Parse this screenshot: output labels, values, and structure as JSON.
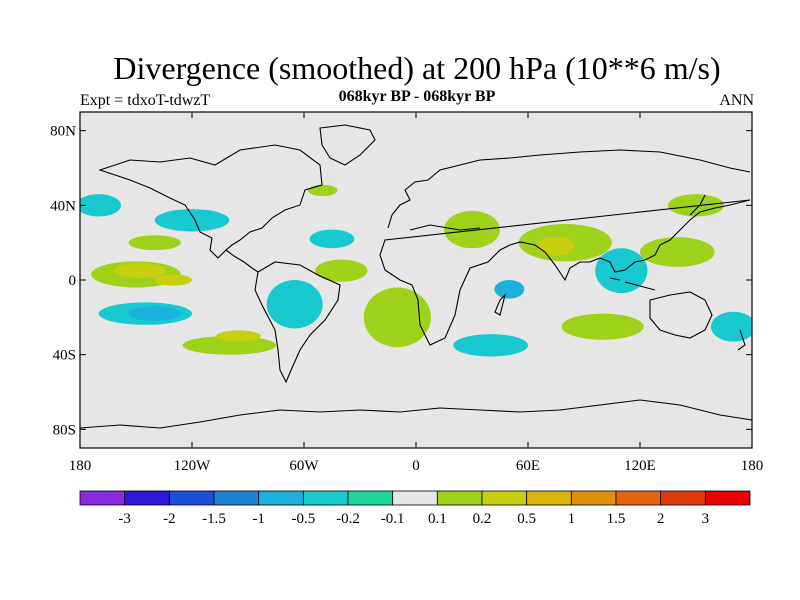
{
  "title": "Divergence (smoothed) at 200 hPa (10**6 m/s)",
  "left_string": "Expt = tdxoT-tdwzT",
  "center_string": "068kyr BP - 068kyr BP",
  "right_string": "ANN",
  "map": {
    "background_color": "#e6e6e6",
    "coastline_color": "#000000",
    "lat_ticks": [
      {
        "label": "80N",
        "lat": 80
      },
      {
        "label": "40N",
        "lat": 40
      },
      {
        "label": "0",
        "lat": 0
      },
      {
        "label": "40S",
        "lat": -40
      },
      {
        "label": "80S",
        "lat": -80
      }
    ],
    "lon_ticks": [
      {
        "label": "180",
        "lon": -180
      },
      {
        "label": "120W",
        "lon": -120
      },
      {
        "label": "60W",
        "lon": -60
      },
      {
        "label": "0",
        "lon": 0
      },
      {
        "label": "60E",
        "lon": 60
      },
      {
        "label": "120E",
        "lon": 120
      },
      {
        "label": "180",
        "lon": 180
      }
    ]
  },
  "colorbar": {
    "labels": [
      "-3",
      "-2",
      "-1.5",
      "-1",
      "-0.5",
      "-0.2",
      "-0.1",
      "0.1",
      "0.2",
      "0.5",
      "1",
      "1.5",
      "2",
      "3"
    ],
    "colors": [
      "#8a2be2",
      "#3018d8",
      "#1c4fd8",
      "#1f84d8",
      "#1ab1dc",
      "#18c9cf",
      "#20d49c",
      "#e6e6e6",
      "#9fd21a",
      "#c7cf10",
      "#dcb20d",
      "#df8f0c",
      "#e0660c",
      "#e03a0c",
      "#e80000"
    ]
  },
  "regions": [
    {
      "level": "0.2",
      "lon": -150,
      "lat": 3,
      "rlon": 24,
      "rlat": 7
    },
    {
      "level": "0.5",
      "lon": -148,
      "lat": 5,
      "rlon": 14,
      "rlat": 4
    },
    {
      "level": "0.5",
      "lon": -130,
      "lat": 0,
      "rlon": 10,
      "rlat": 3
    },
    {
      "level": "-0.2",
      "lon": -145,
      "lat": -18,
      "rlon": 25,
      "rlat": 6
    },
    {
      "level": "-0.5",
      "lon": -140,
      "lat": -18,
      "rlon": 14,
      "rlat": 4
    },
    {
      "level": "-0.2",
      "lon": -170,
      "lat": 40,
      "rlon": 12,
      "rlat": 6
    },
    {
      "level": "-0.2",
      "lon": -120,
      "lat": 32,
      "rlon": 20,
      "rlat": 6
    },
    {
      "level": "0.2",
      "lon": -140,
      "lat": 20,
      "rlon": 14,
      "rlat": 4
    },
    {
      "level": "-0.2",
      "lon": -65,
      "lat": -13,
      "rlon": 15,
      "rlat": 13
    },
    {
      "level": "0.2",
      "lon": -40,
      "lat": 5,
      "rlon": 14,
      "rlat": 6
    },
    {
      "level": "-0.2",
      "lon": -45,
      "lat": 22,
      "rlon": 12,
      "rlat": 5
    },
    {
      "level": "0.2",
      "lon": -50,
      "lat": 48,
      "rlon": 8,
      "rlat": 3
    },
    {
      "level": "0.2",
      "lon": -10,
      "lat": -20,
      "rlon": 18,
      "rlat": 16
    },
    {
      "level": "0.2",
      "lon": 30,
      "lat": 27,
      "rlon": 15,
      "rlat": 10
    },
    {
      "level": "0.2",
      "lon": 80,
      "lat": 20,
      "rlon": 25,
      "rlat": 10
    },
    {
      "level": "0.5",
      "lon": 75,
      "lat": 18,
      "rlon": 10,
      "rlat": 5
    },
    {
      "level": "-0.5",
      "lon": 50,
      "lat": -5,
      "rlon": 8,
      "rlat": 5
    },
    {
      "level": "-0.2",
      "lon": 110,
      "lat": 5,
      "rlon": 14,
      "rlat": 12
    },
    {
      "level": "0.2",
      "lon": 140,
      "lat": 15,
      "rlon": 20,
      "rlat": 8
    },
    {
      "level": "0.2",
      "lon": 150,
      "lat": 40,
      "rlon": 15,
      "rlat": 6
    },
    {
      "level": "-0.2",
      "lon": 170,
      "lat": -25,
      "rlon": 12,
      "rlat": 8
    },
    {
      "level": "0.2",
      "lon": 100,
      "lat": -25,
      "rlon": 22,
      "rlat": 7
    },
    {
      "level": "-0.2",
      "lon": 40,
      "lat": -35,
      "rlon": 20,
      "rlat": 6
    },
    {
      "level": "0.2",
      "lon": -100,
      "lat": -35,
      "rlon": 25,
      "rlat": 5
    },
    {
      "level": "0.5",
      "lon": -95,
      "lat": -30,
      "rlon": 12,
      "rlat": 3
    }
  ]
}
